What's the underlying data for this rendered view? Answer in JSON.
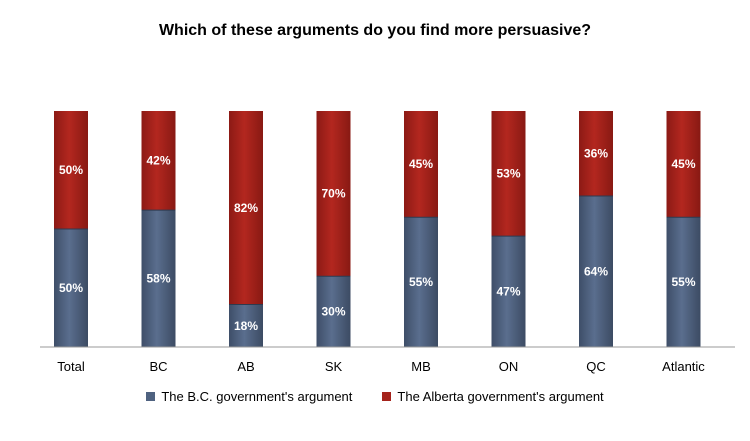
{
  "colors": {
    "bc": "#4f6280",
    "alberta": "#a5231c"
  },
  "chart_data": {
    "type": "bar",
    "stacked": true,
    "title": "Which of these arguments do you find more persuasive?",
    "categories": [
      "Total",
      "BC",
      "AB",
      "SK",
      "MB",
      "ON",
      "QC",
      "Atlantic"
    ],
    "series": [
      {
        "name": "The B.C. government's argument",
        "values": [
          50,
          58,
          18,
          30,
          55,
          47,
          64,
          55
        ],
        "labels": [
          "50%",
          "58%",
          "18%",
          "30%",
          "55%",
          "47%",
          "64%",
          "55%"
        ]
      },
      {
        "name": "The Alberta government's argument",
        "values": [
          50,
          42,
          82,
          70,
          45,
          53,
          36,
          45
        ],
        "labels": [
          "50%",
          "42%",
          "82%",
          "70%",
          "45%",
          "53%",
          "36%",
          "45%"
        ]
      }
    ],
    "ylim": [
      0,
      100
    ],
    "grid": false,
    "legend_position": "bottom"
  }
}
